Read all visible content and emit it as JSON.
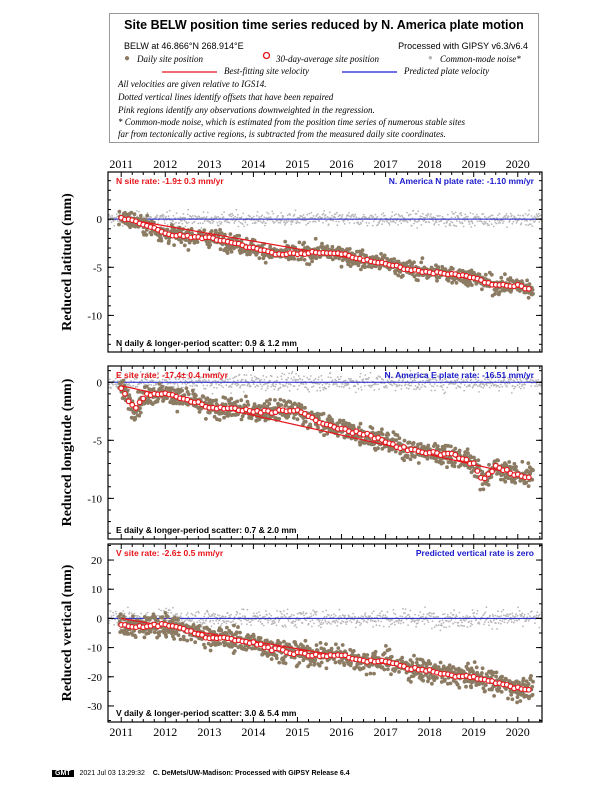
{
  "header": {
    "title": "Site BELW position time series reduced by N. America plate motion",
    "site_coords": "BELW at 46.866°N 268.914°E",
    "processed": "Processed with GIPSY v6.3/v6.4",
    "legend": {
      "daily": "Daily site position",
      "avg30": "30-day-average site position",
      "cmn": "Common-mode noise*",
      "best_fit": "Best-fitting site velocity",
      "predicted": "Predicted plate velocity"
    },
    "notes": [
      "All velocities are given relative to IGS14.",
      "Dotted vertical lines identify offsets that have been repaired",
      "Pink regions identify any observations downweighted in the regression.",
      "* Common-mode noise, which is estimated from the position time series of numerous stable sites",
      "far from tectonically active regions, is subtracted from the measured daily site coordinates."
    ]
  },
  "colors": {
    "daily": "#8c7b63",
    "avg30_stroke": "#e8141a",
    "best_fit": "#e8141a",
    "predicted": "#1a1acc",
    "cmn": "#b8b8b8",
    "rate_text_red": "#e8141a",
    "rate_text_blue": "#1a1acc"
  },
  "chart_data": [
    {
      "type": "scatter",
      "ylabel": "Reduced latitude (mm)",
      "x_ticks": [
        "2011",
        "2012",
        "2013",
        "2014",
        "2015",
        "2016",
        "2017",
        "2018",
        "2019",
        "2020"
      ],
      "xlim": [
        2010.7,
        2020.55
      ],
      "ylim": [
        -13.8,
        4.9
      ],
      "y_ticks": [
        0,
        -5,
        -10
      ],
      "site_rate": "N site rate:  -1.9± 0.3 mm/yr",
      "plate_rate": "N. America N plate rate: -1.10 mm/yr",
      "scatter": "N daily & longer-period scatter:   0.9 &   1.2 mm",
      "series": [
        {
          "name": "Best-fitting site velocity",
          "x": [
            2011.0,
            2020.3
          ],
          "y": [
            0.1,
            -7.3
          ]
        },
        {
          "name": "Predicted plate velocity",
          "x": [
            2010.7,
            2020.55
          ],
          "y": [
            0,
            0
          ]
        },
        {
          "name": "30-day-average site position",
          "x": [
            2011.0,
            2011.5,
            2012.0,
            2012.5,
            2013.0,
            2013.5,
            2014.0,
            2014.5,
            2015.0,
            2015.5,
            2016.0,
            2016.5,
            2017.0,
            2017.5,
            2018.0,
            2018.5,
            2019.0,
            2019.5,
            2020.0,
            2020.3
          ],
          "y": [
            0.2,
            -0.5,
            -1.5,
            -1.8,
            -1.9,
            -2.4,
            -3.0,
            -3.6,
            -3.6,
            -3.4,
            -3.6,
            -4.3,
            -4.6,
            -5.2,
            -5.5,
            -5.7,
            -6.1,
            -6.9,
            -6.9,
            -7.3
          ]
        }
      ]
    },
    {
      "type": "scatter",
      "ylabel": "Reduced longitude (mm)",
      "xlim": [
        2010.7,
        2020.55
      ],
      "ylim": [
        -13.5,
        1.4
      ],
      "y_ticks": [
        0,
        -5,
        -10
      ],
      "site_rate": "E site rate:  -17.4± 0.4 mm/yr",
      "plate_rate": "N. America E plate rate: -16.51 mm/yr",
      "scatter": "E daily & longer-period scatter:   0.7 &   2.0 mm",
      "series": [
        {
          "name": "Best-fitting site velocity",
          "x": [
            2011.0,
            2020.3
          ],
          "y": [
            -0.3,
            -8.2
          ]
        },
        {
          "name": "Predicted plate velocity",
          "x": [
            2010.7,
            2020.55
          ],
          "y": [
            0,
            0
          ]
        },
        {
          "name": "30-day-average site position",
          "x": [
            2011.0,
            2011.3,
            2011.6,
            2012.0,
            2012.5,
            2013.0,
            2013.5,
            2014.0,
            2014.5,
            2015.0,
            2015.5,
            2016.0,
            2016.5,
            2017.0,
            2017.5,
            2018.0,
            2018.5,
            2019.0,
            2019.2,
            2019.5,
            2020.0,
            2020.3
          ],
          "y": [
            -0.5,
            -2.3,
            -1.0,
            -1.0,
            -1.5,
            -2.2,
            -2.3,
            -2.5,
            -2.5,
            -2.4,
            -3.5,
            -4.0,
            -4.5,
            -5.1,
            -5.8,
            -6.1,
            -6.2,
            -7.0,
            -8.5,
            -7.3,
            -8.0,
            -8.1
          ]
        }
      ]
    },
    {
      "type": "scatter",
      "ylabel": "Reduced vertical (mm)",
      "x_ticks": [
        "2011",
        "2012",
        "2013",
        "2014",
        "2015",
        "2016",
        "2017",
        "2018",
        "2019",
        "2020"
      ],
      "xlim": [
        2010.7,
        2020.55
      ],
      "ylim": [
        -35.5,
        25.5
      ],
      "y_ticks": [
        20,
        10,
        0,
        -10,
        -20,
        -30
      ],
      "site_rate": "V site rate:  -2.6± 0.5 mm/yr",
      "plate_rate": "Predicted vertical rate is zero",
      "scatter": "V daily & longer-period scatter:   3.0 &   5.4 mm",
      "series": [
        {
          "name": "Best-fitting site velocity",
          "x": [
            2011.0,
            2020.3
          ],
          "y": [
            0.0,
            -24.2
          ]
        },
        {
          "name": "Predicted plate velocity",
          "x": [
            2010.7,
            2020.55
          ],
          "y": [
            0,
            0
          ]
        },
        {
          "name": "30-day-average site position",
          "x": [
            2011.0,
            2011.5,
            2012.0,
            2012.5,
            2013.0,
            2013.5,
            2014.0,
            2014.5,
            2015.0,
            2015.5,
            2016.0,
            2016.5,
            2017.0,
            2017.5,
            2018.0,
            2018.5,
            2019.0,
            2019.5,
            2020.0,
            2020.3
          ],
          "y": [
            -2.5,
            -3.0,
            -2.0,
            -4.0,
            -6.5,
            -7.0,
            -8.5,
            -10.5,
            -12.0,
            -12.5,
            -12.5,
            -15.0,
            -14.5,
            -17.0,
            -18.0,
            -19.5,
            -20.0,
            -22.0,
            -24.0,
            -24.5
          ]
        }
      ]
    }
  ],
  "footer": {
    "logo": "GMT",
    "timestamp": "2021 Jul 03 13:29:32",
    "credit": "C. DeMets/UW-Madison: Processed with GIPSY Release 6.4"
  }
}
